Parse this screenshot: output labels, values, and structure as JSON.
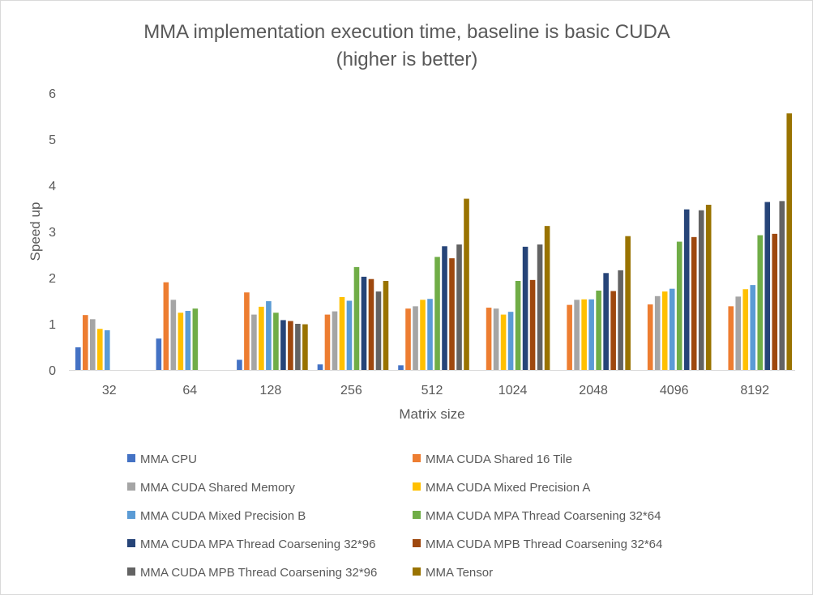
{
  "chart_data": {
    "type": "bar",
    "title_lines": [
      "MMA implementation execution time, baseline is basic CUDA",
      "(higher is better)"
    ],
    "xlabel": "Matrix size",
    "ylabel": "Speed up",
    "ylim": [
      0,
      6
    ],
    "yticks": [
      "0",
      "1",
      "2",
      "3",
      "4",
      "5",
      "6"
    ],
    "grid": false,
    "legend_position": "bottom",
    "categories": [
      "32",
      "64",
      "128",
      "256",
      "512",
      "1024",
      "2048",
      "4096",
      "8192"
    ],
    "series": [
      {
        "name": "MMA CPU",
        "color": "#4472c4",
        "values": [
          0.49,
          0.68,
          0.22,
          0.12,
          0.1,
          null,
          null,
          null,
          null
        ]
      },
      {
        "name": "MMA CUDA Shared 16 Tile",
        "color": "#ed7d31",
        "values": [
          1.19,
          1.9,
          1.68,
          1.2,
          1.33,
          1.35,
          1.41,
          1.42,
          1.38
        ]
      },
      {
        "name": "MMA CUDA Shared Memory",
        "color": "#a5a5a5",
        "values": [
          1.1,
          1.52,
          1.2,
          1.27,
          1.38,
          1.33,
          1.52,
          1.6,
          1.59
        ]
      },
      {
        "name": "MMA CUDA Mixed Precision A",
        "color": "#ffc000",
        "values": [
          0.89,
          1.24,
          1.37,
          1.58,
          1.52,
          1.2,
          1.53,
          1.7,
          1.75
        ]
      },
      {
        "name": "MMA CUDA Mixed Precision B",
        "color": "#5b9bd5",
        "values": [
          0.86,
          1.28,
          1.49,
          1.5,
          1.54,
          1.26,
          1.53,
          1.76,
          1.84
        ]
      },
      {
        "name": "MMA CUDA MPA Thread Coarsening 32*64",
        "color": "#70ad47",
        "values": [
          null,
          1.33,
          1.24,
          2.23,
          2.45,
          1.93,
          1.72,
          2.78,
          2.92
        ]
      },
      {
        "name": "MMA CUDA MPA Thread Coarsening 32*96",
        "color": "#264478",
        "values": [
          null,
          null,
          1.08,
          2.02,
          2.68,
          2.67,
          2.1,
          3.48,
          3.64
        ]
      },
      {
        "name": "MMA CUDA MPB Thread Coarsening 32*64",
        "color": "#9e480e",
        "values": [
          null,
          null,
          1.06,
          1.97,
          2.42,
          1.95,
          1.71,
          2.88,
          2.95
        ]
      },
      {
        "name": "MMA CUDA MPB Thread Coarsening 32*96",
        "color": "#636363",
        "values": [
          null,
          null,
          1.0,
          1.7,
          2.72,
          2.72,
          2.16,
          3.46,
          3.66
        ]
      },
      {
        "name": "MMA Tensor",
        "color": "#997300",
        "values": [
          null,
          null,
          0.99,
          1.93,
          3.71,
          3.12,
          2.9,
          3.58,
          5.56
        ]
      }
    ]
  }
}
